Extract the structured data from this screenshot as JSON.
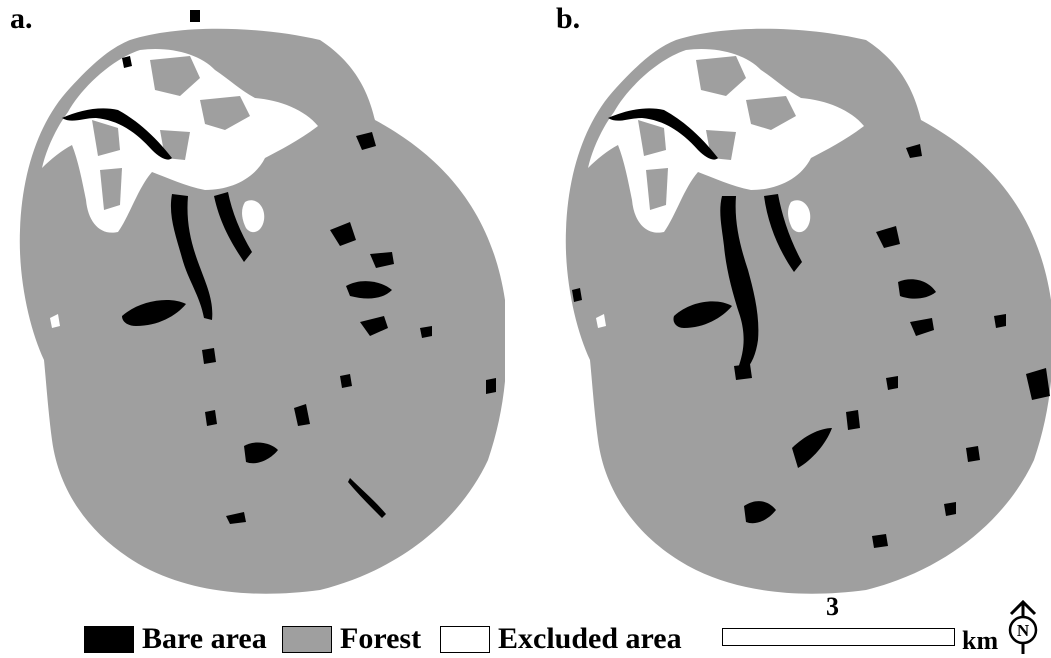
{
  "panels": [
    {
      "label": "a."
    },
    {
      "label": "b."
    }
  ],
  "legend": {
    "items": [
      {
        "label": "Bare area",
        "color": "#000000"
      },
      {
        "label": "Forest",
        "color": "#9f9f9f"
      },
      {
        "label": "Excluded area",
        "color": "#ffffff"
      }
    ]
  },
  "scale_bar": {
    "value": "3",
    "unit": "km"
  },
  "north_arrow": {
    "letter": "N",
    "icon": "north-arrow-icon"
  },
  "colors": {
    "forest": "#9f9f9f",
    "bare": "#000000",
    "excluded": "#ffffff"
  }
}
